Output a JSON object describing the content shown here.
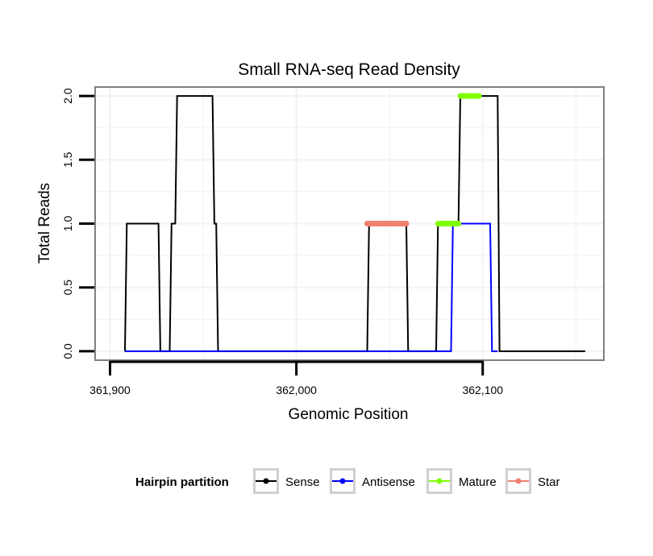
{
  "chart_data": {
    "type": "line",
    "title": "Small RNA-seq Read Density",
    "xlabel": "Genomic Position",
    "ylabel": "Total Reads",
    "xlim": [
      361892,
      362165
    ],
    "ylim": [
      -0.07,
      2.07
    ],
    "x_ticks": [
      361900,
      362000,
      362100
    ],
    "x_tick_labels": [
      "361,900",
      "362,000",
      "362,100"
    ],
    "y_ticks": [
      0.0,
      0.5,
      1.0,
      1.5,
      2.0
    ],
    "y_tick_labels": [
      "0.0",
      "0.5",
      "1.0",
      "1.5",
      "2.0"
    ],
    "grid": true,
    "legend": {
      "title": "Hairpin partition",
      "position": "bottom",
      "entries": [
        "Sense",
        "Antisense",
        "Mature",
        "Star"
      ]
    },
    "series": [
      {
        "name": "Sense",
        "color": "#000000",
        "x": [
          361908,
          361909,
          361926,
          361927,
          361932,
          361933,
          361935,
          361936,
          361955,
          361956,
          361957,
          361958,
          362038,
          362039,
          362059,
          362060,
          362075,
          362076,
          362087,
          362088,
          362108,
          362109,
          362155
        ],
        "y": [
          0,
          1,
          1,
          0,
          0,
          1,
          1,
          2,
          2,
          1,
          1,
          0,
          0,
          1,
          1,
          0,
          0,
          1,
          1,
          2,
          2,
          0,
          0
        ]
      },
      {
        "name": "Antisense",
        "color": "#0000ff",
        "x": [
          361908,
          362083,
          362084,
          362104,
          362105,
          362108
        ],
        "y": [
          0,
          0,
          1,
          1,
          0,
          0
        ]
      },
      {
        "name": "Mature",
        "color": "#7fff00",
        "segments": [
          {
            "x": [
              362076,
              362087
            ],
            "y": 1
          },
          {
            "x": [
              362088,
              362098
            ],
            "y": 2
          }
        ]
      },
      {
        "name": "Star",
        "color": "#f08070",
        "segments": [
          {
            "x": [
              362038,
              362059
            ],
            "y": 1
          }
        ]
      }
    ]
  }
}
